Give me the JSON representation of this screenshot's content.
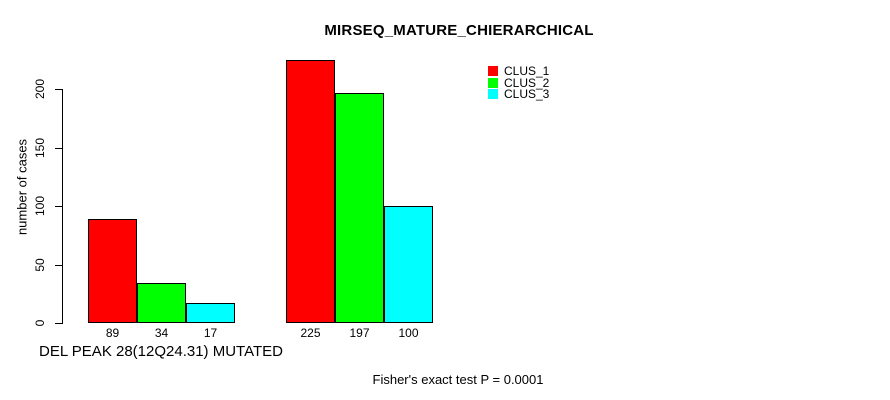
{
  "chart_data": {
    "type": "bar",
    "title": "MIRSEQ_MATURE_CHIERARCHICAL",
    "xlabel": "DEL PEAK 28(12Q24.31) MUTATED",
    "ylabel": "number of cases",
    "footnote": "Fisher's exact test P = 0.0001",
    "categories": [
      "",
      ""
    ],
    "series": [
      {
        "name": "CLUS_1",
        "color": "#ff0000",
        "values": [
          89,
          225
        ]
      },
      {
        "name": "CLUS_2",
        "color": "#00ff00",
        "values": [
          34,
          197
        ]
      },
      {
        "name": "CLUS_3",
        "color": "#00ffff",
        "values": [
          17,
          100
        ]
      }
    ],
    "bar_value_labels": [
      [
        "89",
        "34",
        "17"
      ],
      [
        "225",
        "197",
        "100"
      ]
    ],
    "yticks": [
      0,
      50,
      100,
      150,
      200
    ],
    "axis_range": [
      0,
      200
    ],
    "grid": "off",
    "legend_position": "top-right-inside",
    "bar_border_color": "#000000",
    "text_color": "#000000",
    "background_color": "#ffffff"
  }
}
